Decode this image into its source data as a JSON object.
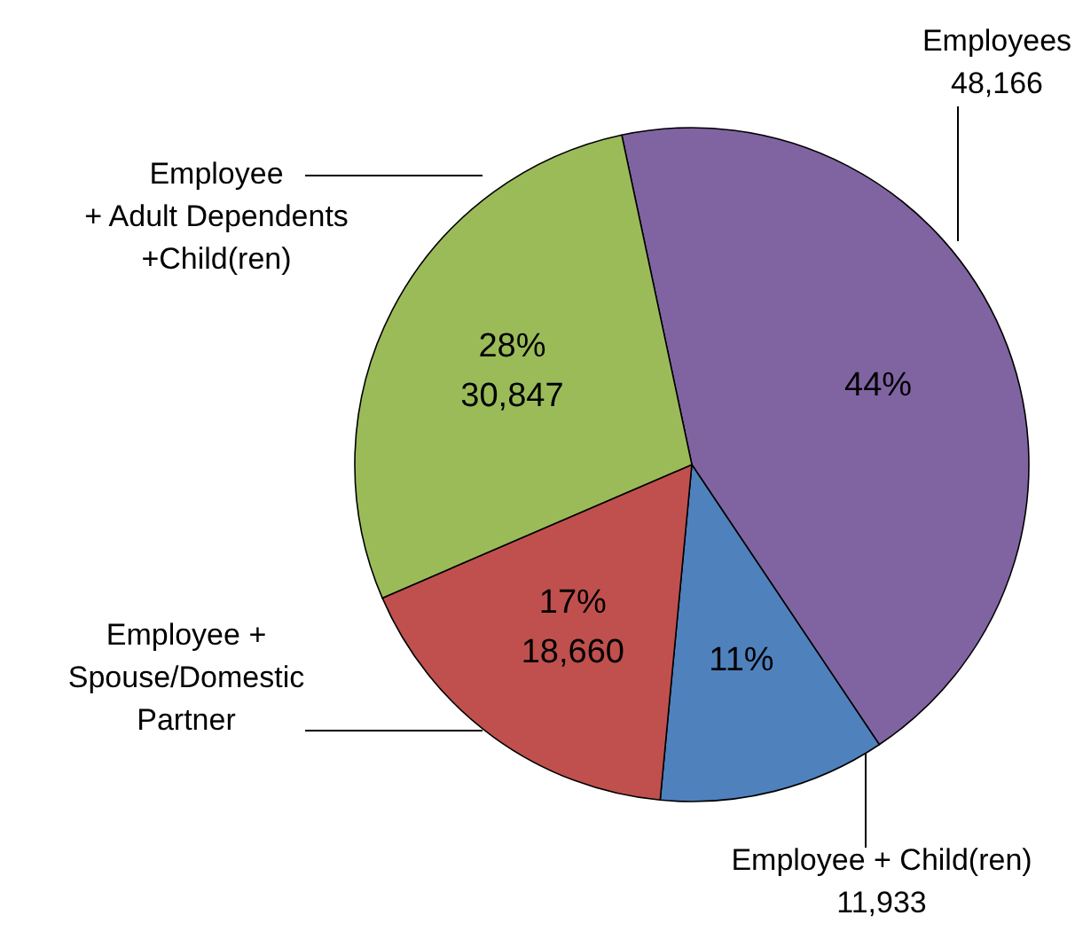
{
  "chart_data": {
    "type": "pie",
    "categories": [
      "Employees",
      "Employee + Child(ren)",
      "Employee +\nSpouse/Domestic\nPartner",
      "Employee\n+ Adult Dependents\n+Child(ren)"
    ],
    "values": [
      48166,
      11933,
      18660,
      30847
    ],
    "colors": [
      "#8064a2",
      "#4f81bd",
      "#c0504d",
      "#9bbb59"
    ],
    "value_labels": [
      "48,166",
      "11,933",
      "18,660",
      "30,847"
    ],
    "annotations": [
      "44%",
      "11%",
      "17%",
      "28%"
    ]
  }
}
